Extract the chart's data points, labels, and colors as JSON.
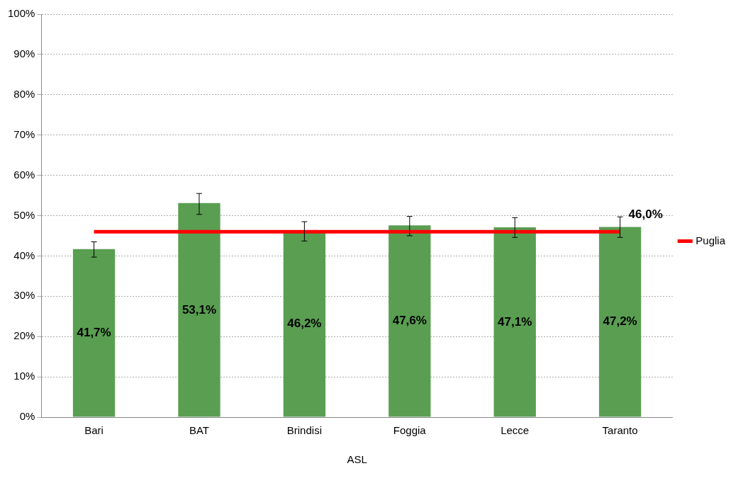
{
  "chart_data": {
    "type": "bar",
    "xlabel": "ASL",
    "categories": [
      "Bari",
      "BAT",
      "Brindisi",
      "Foggia",
      "Lecce",
      "Taranto"
    ],
    "series": [
      {
        "color": "#5a9e52",
        "values": [
          41.7,
          53.1,
          46.2,
          47.6,
          47.1,
          47.2
        ],
        "value_labels": [
          "41,7%",
          "53,1%",
          "46,2%",
          "47,6%",
          "47,1%",
          "47,2%"
        ],
        "errors": [
          [
            39.7,
            43.5
          ],
          [
            50.3,
            55.5
          ],
          [
            43.7,
            48.5
          ],
          [
            45.0,
            49.8
          ],
          [
            44.6,
            49.5
          ],
          [
            44.6,
            49.7
          ]
        ]
      },
      {
        "type": "line",
        "name": "Puglia",
        "color": "#ff0000",
        "values": [
          46.0,
          46.0,
          46.0,
          46.0,
          46.0,
          46.0
        ],
        "value_labels": [
          null,
          null,
          null,
          null,
          null,
          "46,0%"
        ]
      }
    ],
    "ylim": [
      0,
      100
    ],
    "yticks": [
      {
        "value": 0,
        "label": "0%"
      },
      {
        "value": 10,
        "label": "10%"
      },
      {
        "value": 20,
        "label": "20%"
      },
      {
        "value": 30,
        "label": "30%"
      },
      {
        "value": 40,
        "label": "40%"
      },
      {
        "value": 50,
        "label": "50%"
      },
      {
        "value": 60,
        "label": "60%"
      },
      {
        "value": 70,
        "label": "70%"
      },
      {
        "value": 80,
        "label": "80%"
      },
      {
        "value": 90,
        "label": "90%"
      },
      {
        "value": 100,
        "label": "100%"
      }
    ],
    "grid": "y",
    "legend": "right",
    "marker": "none"
  }
}
